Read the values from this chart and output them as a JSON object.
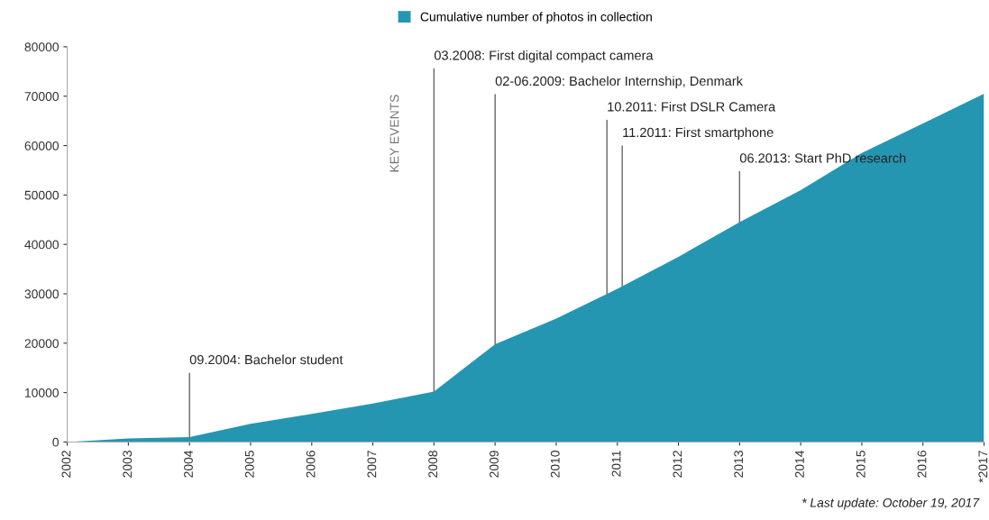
{
  "chart_data": {
    "type": "area",
    "x": [
      2002,
      2003,
      2004,
      2005,
      2006,
      2007,
      2008,
      2009,
      2010,
      2011,
      2012,
      2013,
      2014,
      2015,
      2016,
      2017
    ],
    "series": [
      {
        "name": "Cumulative number of photos in collection",
        "color": "#2596b1",
        "values": [
          0,
          700,
          1000,
          3700,
          5700,
          7800,
          10200,
          19800,
          25000,
          31000,
          37500,
          44500,
          51000,
          58500,
          64500,
          70500
        ]
      }
    ],
    "xlim": [
      2002,
      2017
    ],
    "xticks": [
      2002,
      2003,
      2004,
      2005,
      2006,
      2007,
      2008,
      2009,
      2010,
      2011,
      2012,
      2013,
      2014,
      2015,
      2016,
      {
        "value": 2017,
        "label": "*2017"
      }
    ],
    "ylim": [
      0,
      80000
    ],
    "yticks": [
      0,
      10000,
      20000,
      30000,
      40000,
      50000,
      60000,
      70000,
      80000
    ],
    "grid": false,
    "legend": "top",
    "annotations": [
      {
        "text": "09.2004: Bachelor student",
        "x": 2004,
        "y": 1000
      },
      {
        "text": "03.2008: First digital compact camera",
        "x": 2008,
        "y": 10200
      },
      {
        "text": "02-06.2009: Bachelor Internship, Denmark",
        "x": 2009,
        "y": 19800
      },
      {
        "text": "10.2011: First DSLR Camera",
        "x": 2010.83,
        "y": 29980
      },
      {
        "text": "11.2011: First smartphone",
        "x": 2011.08,
        "y": 31520
      },
      {
        "text": "06.2013: Start PhD research",
        "x": 2013,
        "y": 44500
      },
      "KEY EVENTS",
      "* Last update: October 19, 2017"
    ]
  }
}
